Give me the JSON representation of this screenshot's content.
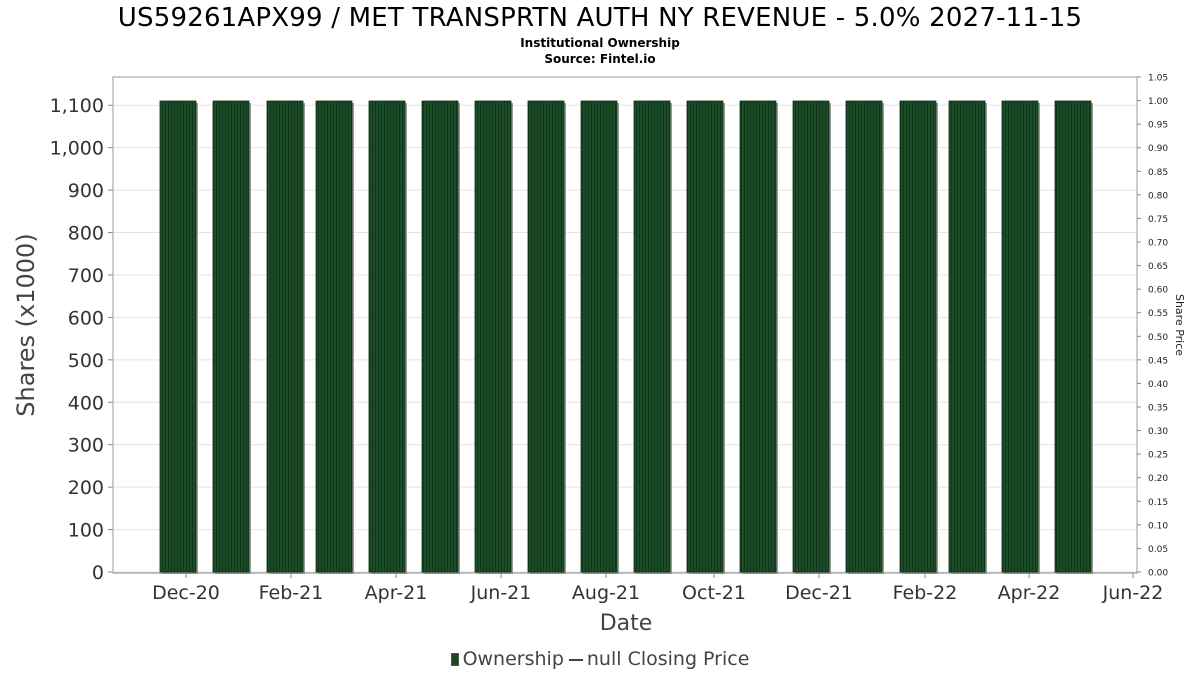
{
  "chart_data": {
    "type": "bar",
    "title": "US59261APX99 / MET TRANSPRTN AUTH NY REVENUE - 5.0% 2027-11-15",
    "subtitle": [
      "Institutional Ownership",
      "Source: Fintel.io"
    ],
    "xlabel": "Date",
    "ylabel": "Shares (x1000)",
    "y2label": "Share Price",
    "x_tick_labels": [
      "Dec-20",
      "Feb-21",
      "Apr-21",
      "Jun-21",
      "Aug-21",
      "Oct-21",
      "Dec-21",
      "Feb-22",
      "Apr-22",
      "Jun-22"
    ],
    "y_ticks": [
      0,
      100,
      200,
      300,
      400,
      500,
      600,
      700,
      800,
      900,
      1000,
      1100
    ],
    "y_tick_labels": [
      "0",
      "100",
      "200",
      "300",
      "400",
      "500",
      "600",
      "700",
      "800",
      "900",
      "1,000",
      "1,100"
    ],
    "ylim": [
      0,
      1110
    ],
    "y2_ticks": [
      "0.00",
      "0.05",
      "0.10",
      "0.15",
      "0.20",
      "0.25",
      "0.30",
      "0.35",
      "0.40",
      "0.45",
      "0.50",
      "0.55",
      "0.60",
      "0.65",
      "0.70",
      "0.75",
      "0.80",
      "0.85",
      "0.90",
      "0.95",
      "1.00",
      "1.05"
    ],
    "y2lim": [
      0,
      1.05
    ],
    "series": [
      {
        "name": "Ownership",
        "color": "#1a4a24",
        "values": [
          1110,
          1110,
          1110,
          1110,
          1110,
          1110,
          1110,
          1110,
          1110,
          1110,
          1110,
          1110,
          1110,
          1110,
          1110,
          1110,
          1110,
          1110
        ]
      }
    ],
    "legend": [
      {
        "label": "Ownership",
        "marker": "bar",
        "color": "#1a4a24"
      },
      {
        "label": "null Closing Price",
        "marker": "line",
        "color": "#444444"
      }
    ],
    "legend_position": "bottom",
    "grid": true
  }
}
